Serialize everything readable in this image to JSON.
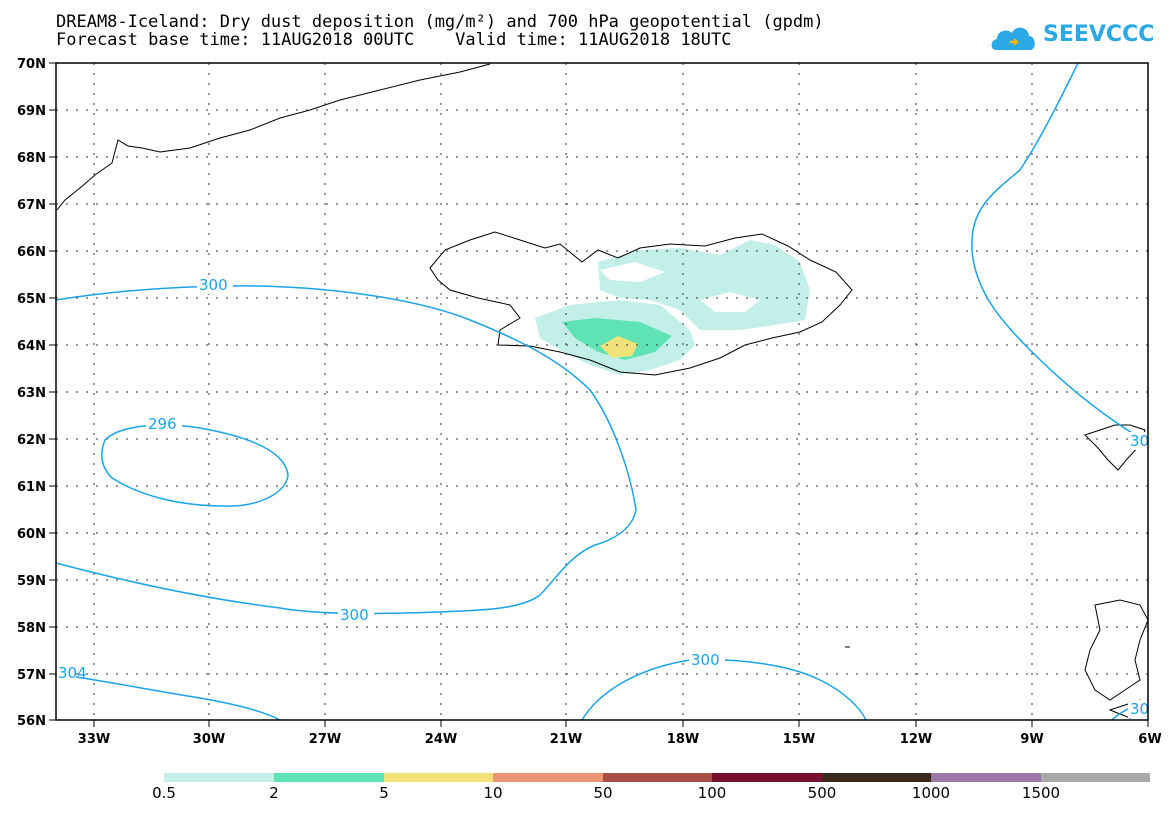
{
  "title": {
    "line1": "DREAM8-Iceland: Dry dust deposition (mg/m²) and 700 hPa geopotential (gpdm)",
    "line2": "Forecast base time: 11AUG2018 00UTC    Valid time: 11AUG2018 18UTC"
  },
  "logo": {
    "text": "SEEVCCC",
    "icon": "cloud-logo-icon",
    "color": "#2aa8e8"
  },
  "axes": {
    "lat_labels": [
      "70N",
      "69N",
      "68N",
      "67N",
      "66N",
      "65N",
      "64N",
      "63N",
      "62N",
      "61N",
      "60N",
      "59N",
      "58N",
      "57N",
      "56N"
    ],
    "lon_labels": [
      "33W",
      "30W",
      "27W",
      "24W",
      "21W",
      "18W",
      "15W",
      "12W",
      "9W",
      "6W"
    ]
  },
  "contours": {
    "color": "#1aa3e8",
    "labels": [
      "300",
      "296",
      "300",
      "300",
      "304",
      "30",
      "30"
    ]
  },
  "colorbar": {
    "colors": [
      "#c2f0e8",
      "#5fe3b4",
      "#f2e27a",
      "#ec9474",
      "#a85048",
      "#7a1030",
      "#3a2a1c",
      "#9a78a8",
      "#a8a8a8"
    ],
    "labels": [
      "0.5",
      "2",
      "5",
      "10",
      "50",
      "100",
      "500",
      "1000",
      "1500"
    ]
  }
}
